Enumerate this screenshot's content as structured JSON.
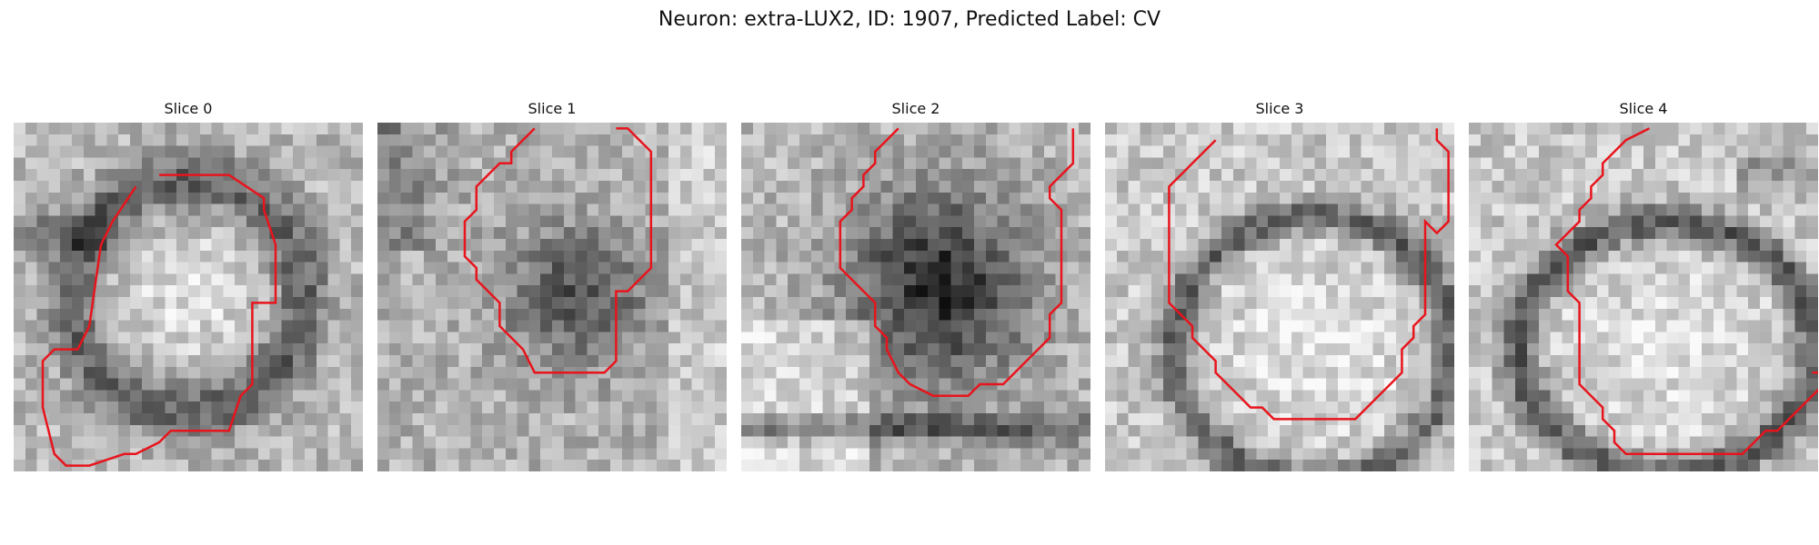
{
  "figure": {
    "title": "Neuron: extra-LUX2, ID: 1907, Predicted Label: CV"
  },
  "panels": [
    {
      "title": "Slice 0",
      "contour": [
        [
          12,
          4
        ],
        [
          18,
          4
        ],
        [
          21,
          6
        ],
        [
          21,
          7
        ],
        [
          22,
          10
        ],
        [
          22,
          14
        ],
        [
          22,
          15
        ],
        [
          20,
          15
        ],
        [
          20,
          22
        ],
        [
          19,
          23
        ],
        [
          18,
          26
        ],
        [
          13,
          26
        ],
        [
          12,
          27
        ],
        [
          10,
          28
        ],
        [
          9,
          28
        ],
        [
          6,
          29
        ],
        [
          4,
          29
        ],
        [
          3,
          28
        ],
        [
          2,
          24
        ],
        [
          2,
          20
        ],
        [
          3,
          19
        ],
        [
          5,
          19
        ],
        [
          6,
          17
        ],
        [
          7,
          10
        ],
        [
          8,
          8
        ],
        [
          10,
          5
        ]
      ]
    },
    {
      "title": "Slice 1",
      "contour": [
        [
          13,
          0
        ],
        [
          11,
          2
        ],
        [
          11,
          3
        ],
        [
          10,
          3
        ],
        [
          8,
          5
        ],
        [
          8,
          7
        ],
        [
          7,
          8
        ],
        [
          7,
          10
        ],
        [
          7,
          11
        ],
        [
          8,
          12
        ],
        [
          8,
          13
        ],
        [
          9,
          14
        ],
        [
          10,
          15
        ],
        [
          10,
          17
        ],
        [
          11,
          18
        ],
        [
          12,
          19
        ],
        [
          13,
          21
        ],
        [
          15,
          21
        ],
        [
          19,
          21
        ],
        [
          20,
          20
        ],
        [
          20,
          18
        ],
        [
          20,
          14
        ],
        [
          21,
          14
        ],
        [
          22,
          13
        ],
        [
          23,
          12
        ],
        [
          23,
          6
        ],
        [
          23,
          2
        ],
        [
          22,
          1
        ],
        [
          21,
          0
        ],
        [
          20,
          0
        ]
      ]
    },
    {
      "title": "Slice 2",
      "contour": [
        [
          13,
          0
        ],
        [
          12,
          1
        ],
        [
          11,
          2
        ],
        [
          11,
          3
        ],
        [
          10,
          4
        ],
        [
          10,
          5
        ],
        [
          9,
          6
        ],
        [
          9,
          7
        ],
        [
          8,
          8
        ],
        [
          8,
          9
        ],
        [
          8,
          12
        ],
        [
          9,
          13
        ],
        [
          10,
          14
        ],
        [
          11,
          15
        ],
        [
          11,
          17
        ],
        [
          12,
          18
        ],
        [
          12,
          19
        ],
        [
          13,
          21
        ],
        [
          14,
          22
        ],
        [
          16,
          23
        ],
        [
          19,
          23
        ],
        [
          20,
          22
        ],
        [
          22,
          22
        ],
        [
          23,
          21
        ],
        [
          24,
          20
        ],
        [
          25,
          19
        ],
        [
          26,
          18
        ],
        [
          26,
          17
        ],
        [
          26,
          16
        ],
        [
          27,
          15
        ],
        [
          27,
          14
        ],
        [
          27,
          13
        ],
        [
          27,
          11
        ],
        [
          27,
          9
        ],
        [
          27,
          8
        ],
        [
          27,
          7
        ],
        [
          26,
          6
        ],
        [
          26,
          5
        ],
        [
          27,
          4
        ],
        [
          28,
          3
        ],
        [
          28,
          0
        ]
      ]
    },
    {
      "title": "Slice 3",
      "contour": [
        [
          9,
          1
        ],
        [
          7,
          3
        ],
        [
          6,
          4
        ],
        [
          5,
          5
        ],
        [
          5,
          15
        ],
        [
          6,
          16
        ],
        [
          7,
          17
        ],
        [
          7,
          18
        ],
        [
          8,
          19
        ],
        [
          9,
          20
        ],
        [
          9,
          21
        ],
        [
          10,
          22
        ],
        [
          11,
          23
        ],
        [
          12,
          24
        ],
        [
          13,
          24
        ],
        [
          14,
          25
        ],
        [
          21,
          25
        ],
        [
          22,
          24
        ],
        [
          23,
          23
        ],
        [
          24,
          22
        ],
        [
          25,
          21
        ],
        [
          25,
          19
        ],
        [
          26,
          18
        ],
        [
          26,
          17
        ],
        [
          27,
          16
        ],
        [
          27,
          9
        ],
        [
          27,
          8
        ],
        [
          28,
          9
        ],
        [
          29,
          8
        ],
        [
          29,
          7
        ],
        [
          29,
          2
        ],
        [
          28,
          1
        ],
        [
          28,
          0
        ]
      ]
    },
    {
      "title": "Slice 4",
      "contour": [
        [
          15,
          0
        ],
        [
          13,
          1
        ],
        [
          12,
          2
        ],
        [
          11,
          3
        ],
        [
          11,
          4
        ],
        [
          10,
          5
        ],
        [
          10,
          6
        ],
        [
          9,
          7
        ],
        [
          9,
          8
        ],
        [
          8,
          9
        ],
        [
          7,
          10
        ],
        [
          8,
          11
        ],
        [
          8,
          14
        ],
        [
          9,
          15
        ],
        [
          9,
          22
        ],
        [
          11,
          24
        ],
        [
          11,
          25
        ],
        [
          12,
          26
        ],
        [
          12,
          27
        ],
        [
          13,
          28
        ],
        [
          23,
          28
        ],
        [
          24,
          27
        ],
        [
          25,
          26
        ],
        [
          26,
          26
        ],
        [
          27,
          25
        ],
        [
          28,
          24
        ],
        [
          29,
          23
        ],
        [
          30,
          22
        ],
        [
          30,
          21
        ],
        [
          29,
          21
        ]
      ]
    }
  ]
}
